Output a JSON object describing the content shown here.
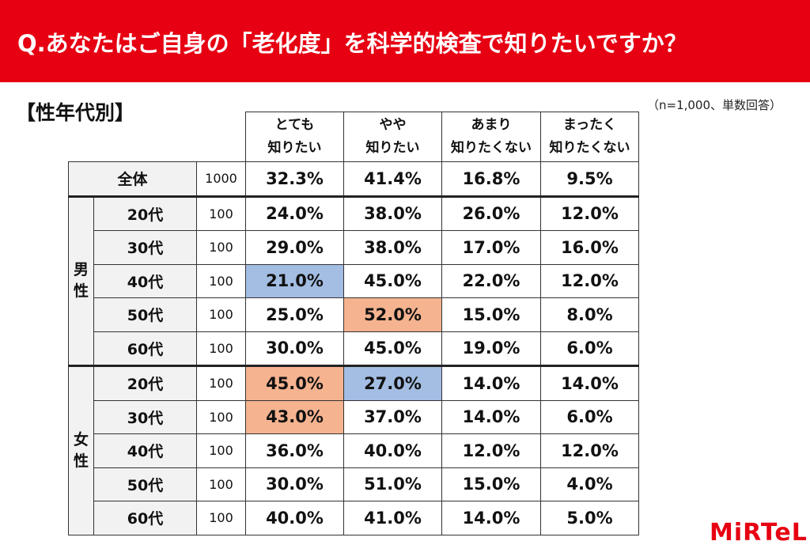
{
  "question": "Q.あなたはご自身の「老化度」を科学的検査で知りたいですか？",
  "section": "【性年代別】",
  "note": "（n=1,000、単数回答）",
  "logo": "MiRTeL",
  "colors": {
    "header": "#e60012",
    "highlight_low": "#a3bde3",
    "highlight_high": "#f5b38f"
  },
  "chart_data": {
    "type": "table",
    "columns": [
      {
        "line1": "とても",
        "line2": "知りたい"
      },
      {
        "line1": "やや",
        "line2": "知りたい"
      },
      {
        "line1": "あまり",
        "line2": "知りたくない"
      },
      {
        "line1": "まったく",
        "line2": "知りたくない"
      }
    ],
    "total": {
      "label": "全体",
      "n": "1000",
      "values": [
        "32.3%",
        "41.4%",
        "16.8%",
        "9.5%"
      ]
    },
    "groups": [
      {
        "gender_chars": [
          "男",
          "性"
        ],
        "rows": [
          {
            "label": "20代",
            "n": "100",
            "values": [
              "24.0%",
              "38.0%",
              "26.0%",
              "12.0%"
            ]
          },
          {
            "label": "30代",
            "n": "100",
            "values": [
              "29.0%",
              "38.0%",
              "17.0%",
              "16.0%"
            ]
          },
          {
            "label": "40代",
            "n": "100",
            "values": [
              "21.0%",
              "45.0%",
              "22.0%",
              "12.0%"
            ],
            "highlight": [
              0,
              -1,
              -1,
              -1
            ]
          },
          {
            "label": "50代",
            "n": "100",
            "values": [
              "25.0%",
              "52.0%",
              "15.0%",
              "8.0%"
            ],
            "highlight": [
              -1,
              1,
              -1,
              -1
            ]
          },
          {
            "label": "60代",
            "n": "100",
            "values": [
              "30.0%",
              "45.0%",
              "19.0%",
              "6.0%"
            ]
          }
        ]
      },
      {
        "gender_chars": [
          "女",
          "性"
        ],
        "rows": [
          {
            "label": "20代",
            "n": "100",
            "values": [
              "45.0%",
              "27.0%",
              "14.0%",
              "14.0%"
            ],
            "highlight": [
              1,
              0,
              -1,
              -1
            ]
          },
          {
            "label": "30代",
            "n": "100",
            "values": [
              "43.0%",
              "37.0%",
              "14.0%",
              "6.0%"
            ],
            "highlight": [
              1,
              -1,
              -1,
              -1
            ]
          },
          {
            "label": "40代",
            "n": "100",
            "values": [
              "36.0%",
              "40.0%",
              "12.0%",
              "12.0%"
            ]
          },
          {
            "label": "50代",
            "n": "100",
            "values": [
              "30.0%",
              "51.0%",
              "15.0%",
              "4.0%"
            ]
          },
          {
            "label": "60代",
            "n": "100",
            "values": [
              "40.0%",
              "41.0%",
              "14.0%",
              "5.0%"
            ]
          }
        ]
      }
    ]
  }
}
